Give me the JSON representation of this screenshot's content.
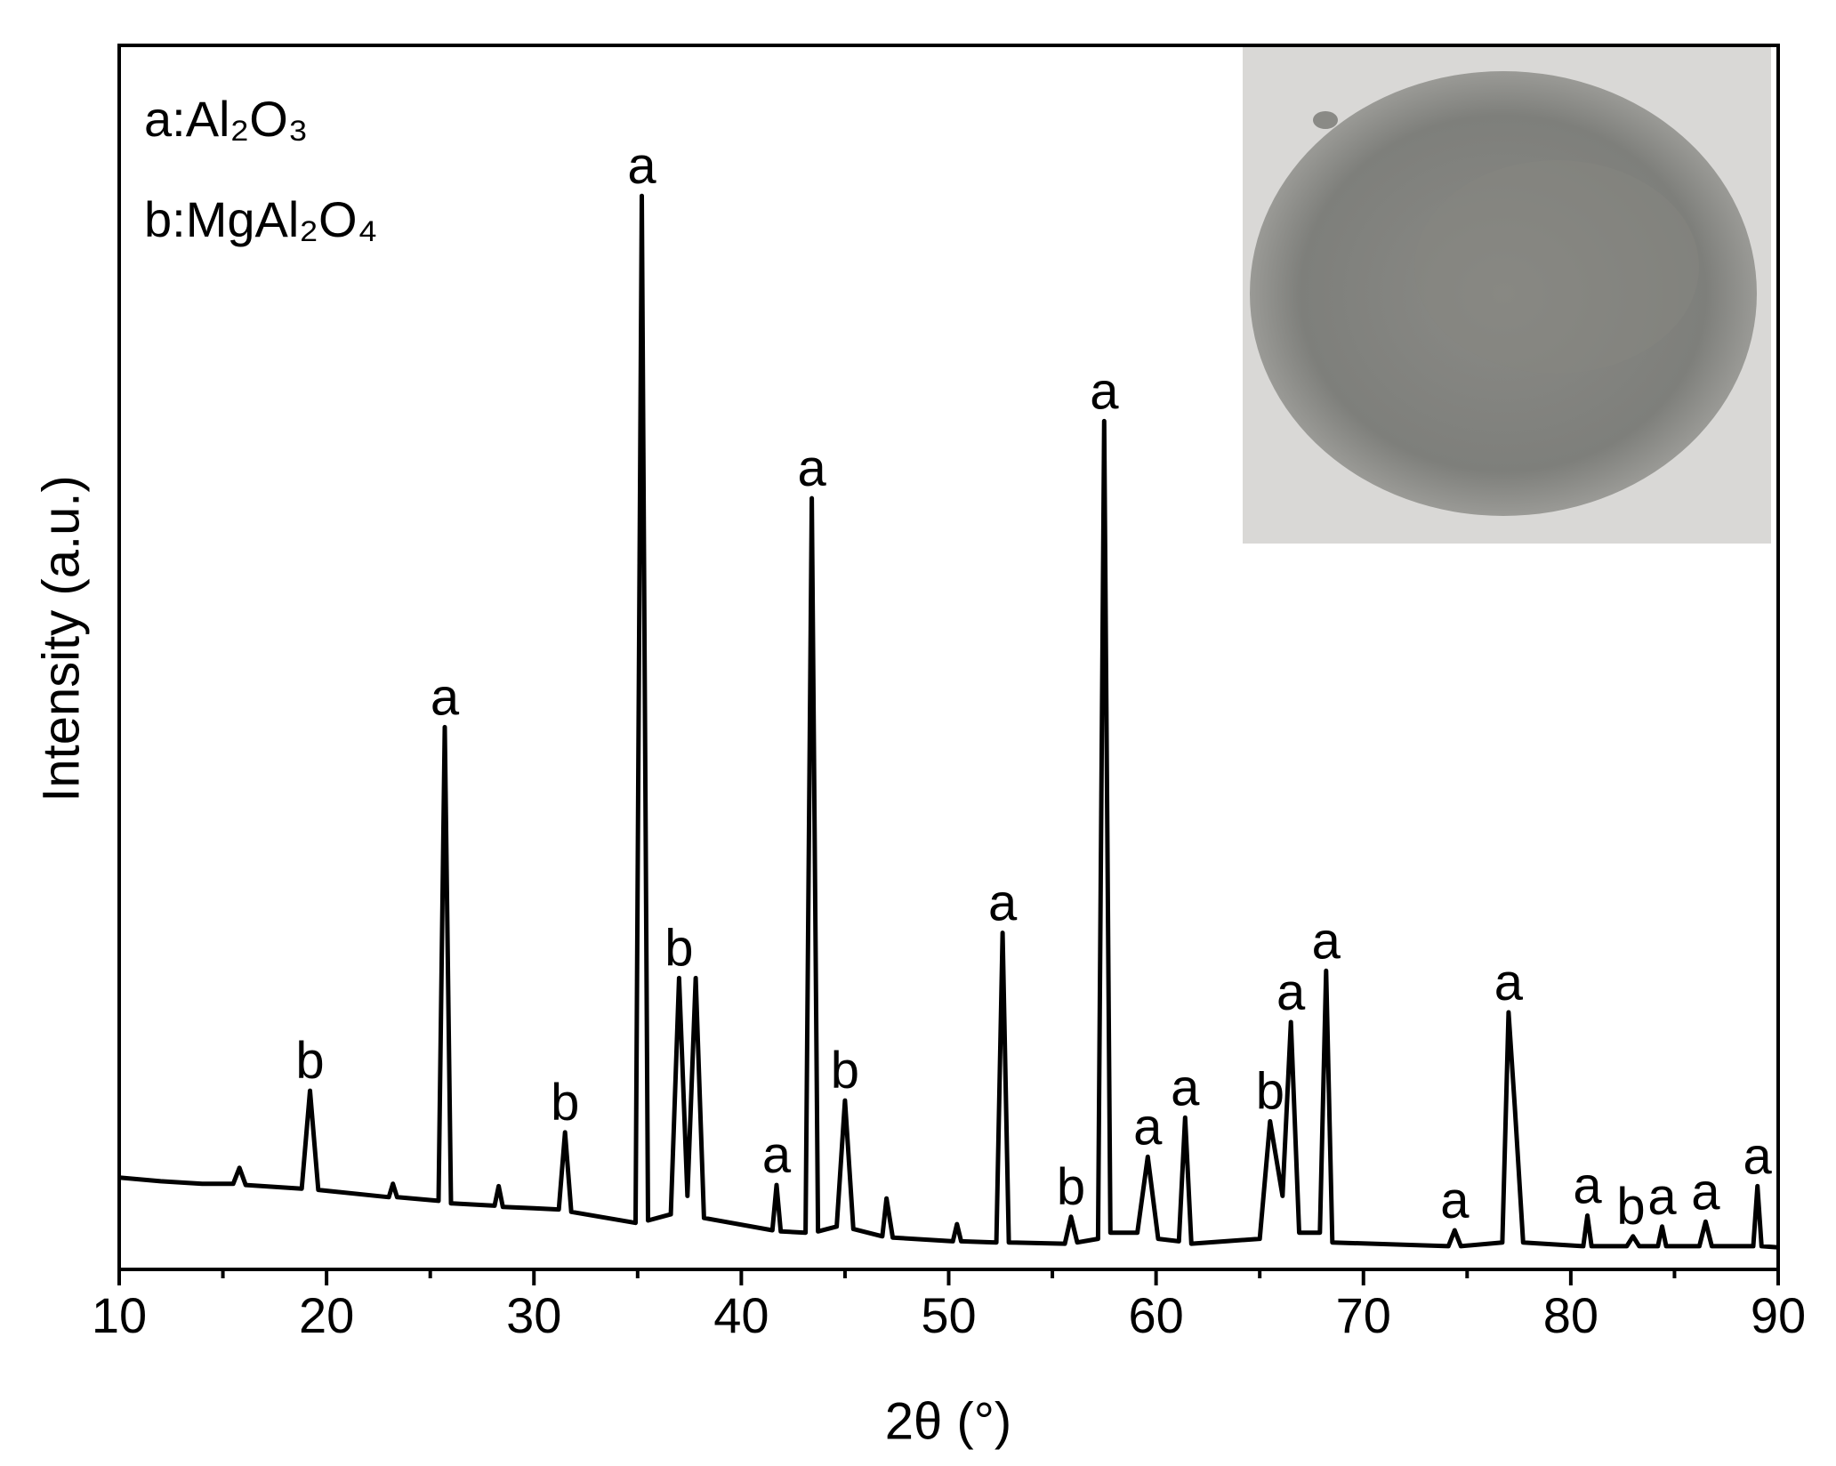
{
  "chart_data": {
    "type": "line",
    "xlabel": "2θ (°)",
    "ylabel": "Intensity (a.u.)",
    "legend_notes": [
      "a:Al₂O₃",
      "b:MgAl₂O₄"
    ],
    "xlim": [
      10,
      90
    ],
    "xticks": [
      10,
      20,
      30,
      40,
      50,
      60,
      70,
      80,
      90
    ],
    "xminorticks": [
      15,
      25,
      35,
      45,
      55,
      65,
      75,
      85
    ],
    "ylim": [
      0,
      100
    ],
    "series": [
      {
        "color": "#000000",
        "x": [
          10,
          12,
          14,
          15.5,
          15.8,
          16.1,
          18.8,
          19.2,
          19.6,
          23,
          23.2,
          23.4,
          25.4,
          25.7,
          26,
          28.1,
          28.3,
          28.5,
          30,
          31.2,
          31.5,
          31.8,
          34.9,
          35.2,
          35.5,
          36.6,
          37.0,
          37.4,
          37.8,
          38.2,
          41.5,
          41.7,
          41.9,
          43.1,
          43.4,
          43.7,
          44.6,
          45.0,
          45.4,
          46.8,
          47.0,
          47.3,
          50.2,
          50.4,
          50.6,
          52.3,
          52.6,
          52.9,
          55.6,
          55.9,
          56.2,
          57.2,
          57.5,
          57.8,
          59.1,
          59.6,
          60.1,
          61.1,
          61.4,
          61.7,
          65.0,
          65.5,
          66.1,
          66.5,
          66.9,
          67.9,
          68.2,
          68.5,
          74.1,
          74.4,
          74.7,
          76.7,
          77.0,
          77.3,
          77.7,
          80.6,
          80.8,
          81.0,
          82.7,
          83.0,
          83.3,
          84.2,
          84.4,
          84.6,
          86.2,
          86.5,
          86.8,
          88.8,
          89.0,
          89.2,
          90
        ],
        "values": [
          7.5,
          7.2,
          7,
          7,
          8.3,
          6.9,
          6.6,
          14.6,
          6.5,
          5.9,
          7,
          5.9,
          5.6,
          44.3,
          5.4,
          5.2,
          6.8,
          5.1,
          5,
          4.9,
          11.2,
          4.7,
          3.8,
          87.7,
          4,
          4.5,
          23.8,
          6,
          23.8,
          4.2,
          3.2,
          6.9,
          3.1,
          3.0,
          63.0,
          3.1,
          3.5,
          13.8,
          3.3,
          2.7,
          5.8,
          2.6,
          2.3,
          3.7,
          2.3,
          2.2,
          27.5,
          2.2,
          2.1,
          4.3,
          2.2,
          2.5,
          69.3,
          3,
          3,
          9.2,
          2.5,
          2.3,
          12.4,
          2.1,
          2.5,
          12.1,
          6,
          20.2,
          3,
          3,
          24.4,
          2.2,
          1.9,
          3.2,
          1.9,
          2.2,
          21,
          13.3,
          2.2,
          1.9,
          4.4,
          1.9,
          1.9,
          2.7,
          1.9,
          1.9,
          3.5,
          1.9,
          1.9,
          3.9,
          1.9,
          1.9,
          6.8,
          1.9,
          1.8
        ]
      }
    ],
    "annotations": [
      {
        "text": "b",
        "x": 19.2,
        "y": 14.6
      },
      {
        "text": "a",
        "x": 25.7,
        "y": 44.3
      },
      {
        "text": "b",
        "x": 31.5,
        "y": 11.2
      },
      {
        "text": "a",
        "x": 35.2,
        "y": 87.7
      },
      {
        "text": "b",
        "x": 37.0,
        "y": 23.8
      },
      {
        "text": "a",
        "x": 41.7,
        "y": 6.9
      },
      {
        "text": "a",
        "x": 43.4,
        "y": 63.0
      },
      {
        "text": "b",
        "x": 45.0,
        "y": 13.8
      },
      {
        "text": "a",
        "x": 52.6,
        "y": 27.5
      },
      {
        "text": "b",
        "x": 55.9,
        "y": 4.3
      },
      {
        "text": "a",
        "x": 57.5,
        "y": 69.3
      },
      {
        "text": "a",
        "x": 59.6,
        "y": 9.2
      },
      {
        "text": "a",
        "x": 61.4,
        "y": 12.4
      },
      {
        "text": "b",
        "x": 65.5,
        "y": 12.1
      },
      {
        "text": "a",
        "x": 66.5,
        "y": 20.2
      },
      {
        "text": "a",
        "x": 68.2,
        "y": 24.4
      },
      {
        "text": "a",
        "x": 74.4,
        "y": 3.2
      },
      {
        "text": "a",
        "x": 77.0,
        "y": 21.0
      },
      {
        "text": "a",
        "x": 80.8,
        "y": 4.4
      },
      {
        "text": "b",
        "x": 82.9,
        "y": 2.7
      },
      {
        "text": "a",
        "x": 84.4,
        "y": 3.5
      },
      {
        "text": "a",
        "x": 86.5,
        "y": 3.9
      },
      {
        "text": "a",
        "x": 89.0,
        "y": 6.8
      }
    ]
  }
}
